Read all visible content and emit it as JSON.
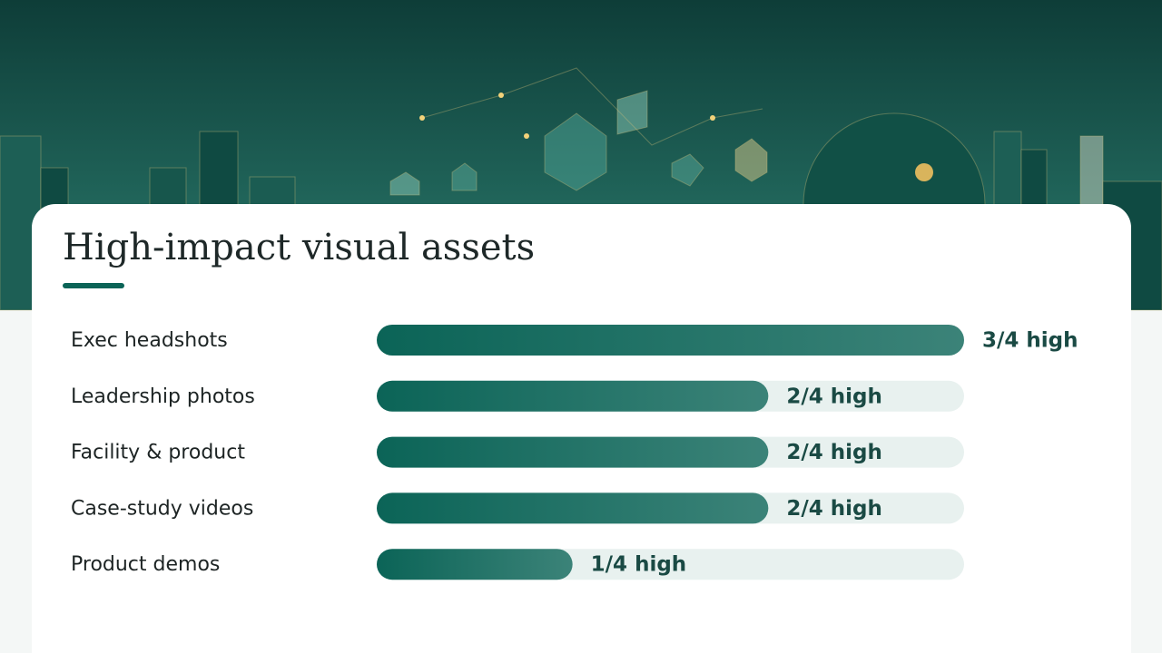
{
  "chart_data": {
    "type": "hbar",
    "title": "High-impact visual assets",
    "categories": [
      "Exec headshots",
      "Leadership photos",
      "Facility & product",
      "Case-study videos",
      "Product demos"
    ],
    "values": [
      3,
      2,
      2,
      2,
      1
    ],
    "value_labels": [
      "3/4 high",
      "2/4 high",
      "2/4 high",
      "2/4 high",
      "1/4 high"
    ],
    "xlim": [
      0,
      3
    ],
    "color": "#0b6457"
  }
}
